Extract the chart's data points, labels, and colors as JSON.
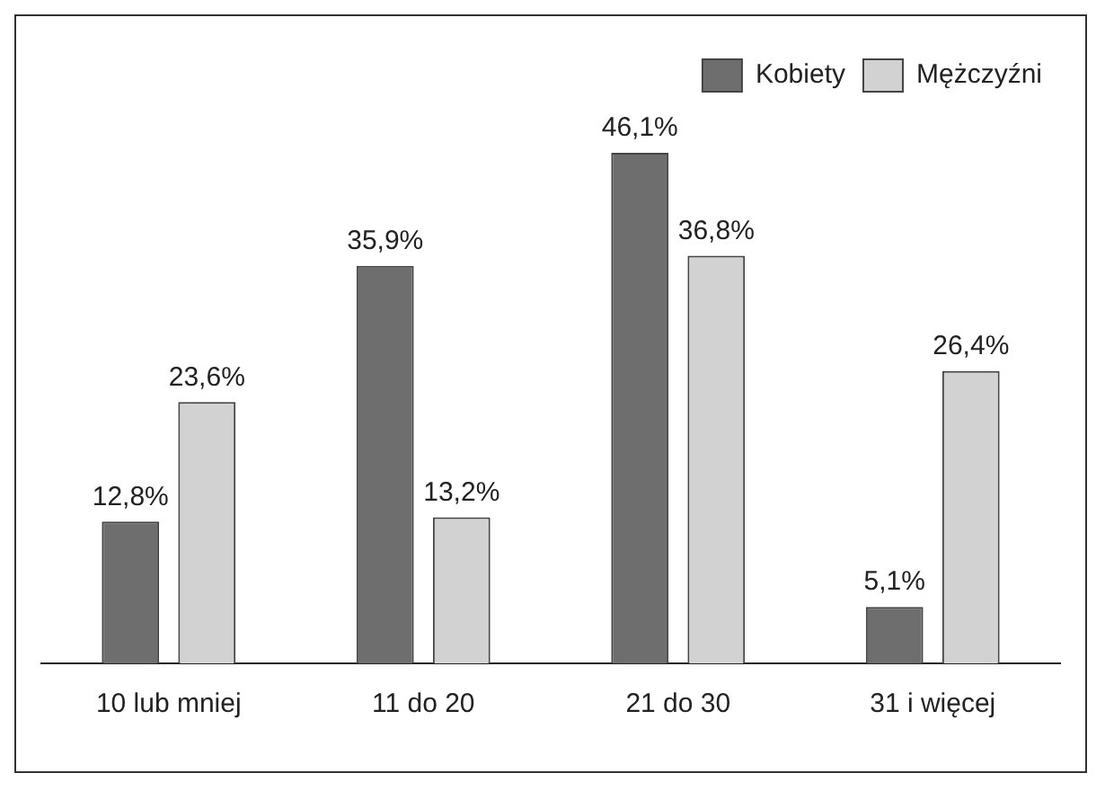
{
  "chart_data": {
    "type": "bar",
    "categories": [
      "10 lub mniej",
      "11 do 20",
      "21 do 30",
      "31 i więcej"
    ],
    "series": [
      {
        "name": "Kobiety",
        "color": "#6e6e6e",
        "values": [
          12.8,
          35.9,
          46.1,
          5.1
        ],
        "value_labels": [
          "12,8%",
          "35,9%",
          "46,1%",
          "5,1%"
        ]
      },
      {
        "name": "Mężczyźni",
        "color": "#d2d2d2",
        "values": [
          23.6,
          13.2,
          36.8,
          26.4
        ],
        "value_labels": [
          "23,6%",
          "13,2%",
          "36,8%",
          "26,4%"
        ]
      }
    ],
    "legend": "top right",
    "grid": false
  }
}
